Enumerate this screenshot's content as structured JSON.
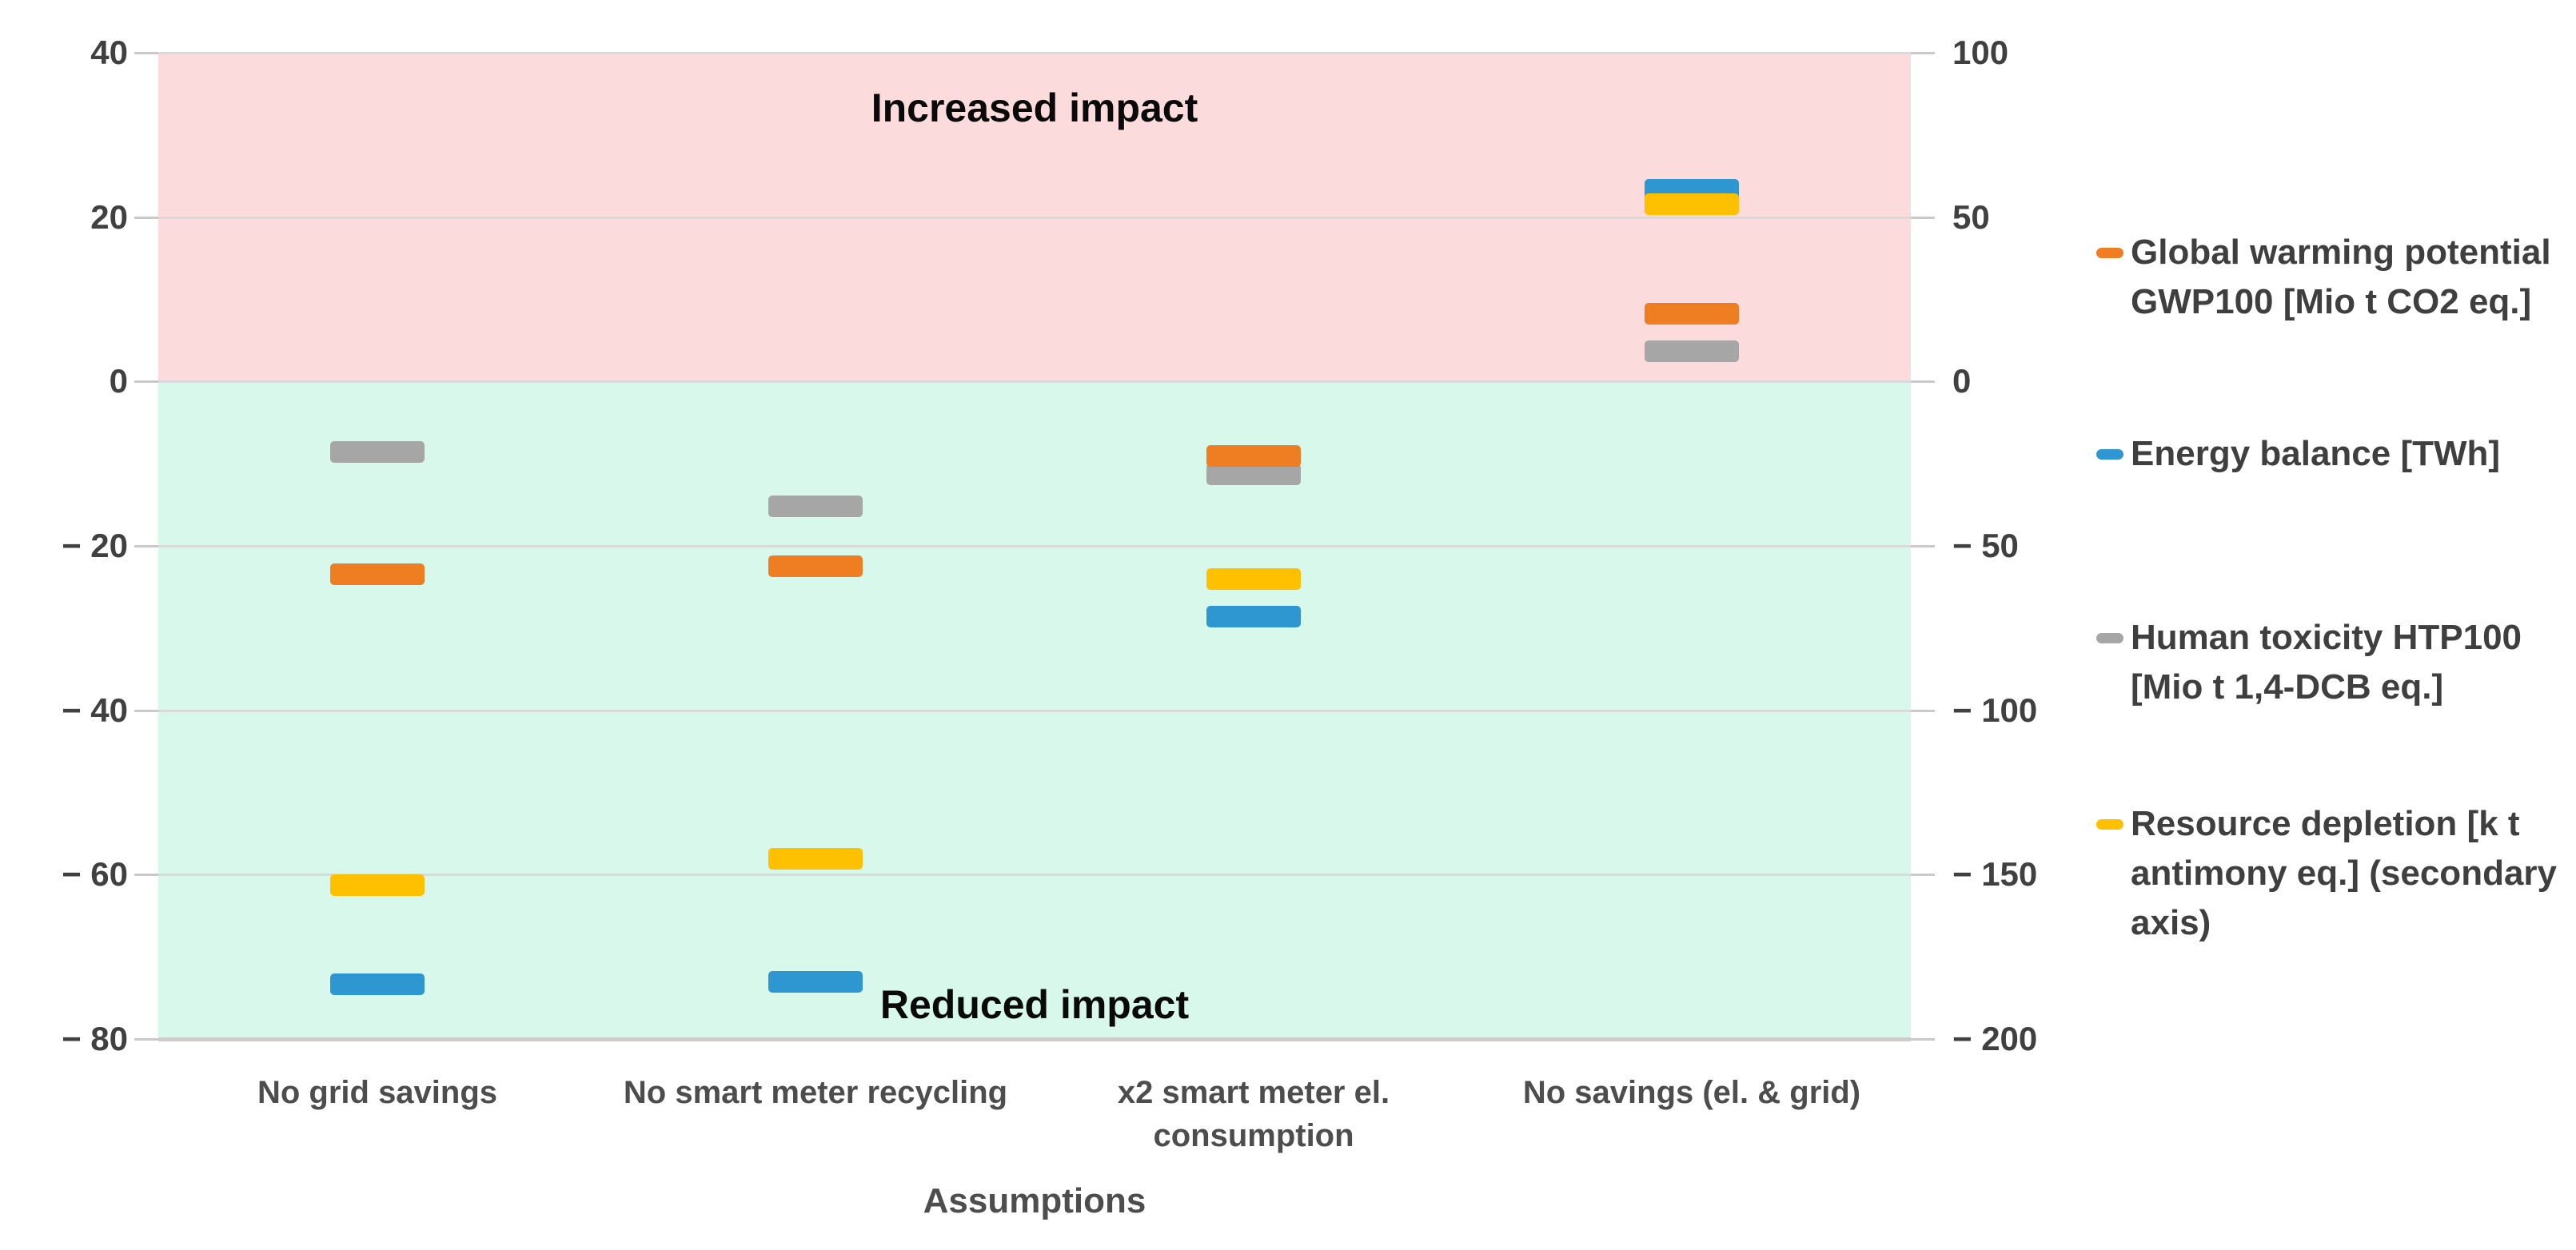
{
  "chart_data": {
    "type": "scatter",
    "title": "",
    "xlabel": "Assumptions",
    "annotations": {
      "increased": "Increased impact",
      "reduced": "Reduced impact"
    },
    "categories": [
      "No grid savings",
      "No smart meter recycling",
      "x2 smart meter el. consumption",
      "No savings (el. & grid)"
    ],
    "left_axis": {
      "range": [
        -80,
        40
      ],
      "values": [
        40,
        20,
        0,
        -20,
        -40,
        -60,
        -80
      ],
      "labels": [
        "40",
        "20",
        "0",
        "− 20",
        "− 40",
        "− 60",
        "− 80"
      ]
    },
    "right_axis": {
      "range": [
        -200,
        100
      ],
      "values": [
        100,
        50,
        0,
        -50,
        -100,
        -150,
        -200
      ],
      "labels": [
        "100",
        "50",
        "0",
        "− 50",
        "− 100",
        "− 150",
        "− 200"
      ]
    },
    "series": [
      {
        "name": "Global warming potential GWP100 [Mio t CO2 eq.]",
        "color": "#EF7D22",
        "axis": "left",
        "z": 3,
        "values": [
          -23.4,
          -22.4,
          -9.0,
          8.3
        ]
      },
      {
        "name": "Energy balance [TWh]",
        "color": "#2E96D1",
        "axis": "left",
        "z": 2,
        "values": [
          -73.3,
          -73.0,
          -28.6,
          23.4
        ]
      },
      {
        "name": "Human toxicity HTP100 [Mio t 1,4-DCB eq.]",
        "color": "#A6A6A6",
        "axis": "left",
        "z": 1,
        "values": [
          -8.5,
          -15.1,
          -11.2,
          3.7
        ]
      },
      {
        "name": "Resource depletion [k t antimony eq.] (secondary axis)",
        "color": "#FFC000",
        "axis": "right",
        "z": 4,
        "values": [
          -153,
          -145,
          -60,
          54
        ]
      }
    ],
    "legend": {
      "position": "right",
      "entries": [
        {
          "color": "#EF7D22",
          "lines": [
            "Global warming potential",
            "GWP100 [Mio t CO2 eq.]"
          ]
        },
        {
          "color": "#2E96D1",
          "lines": [
            "Energy balance [TWh]"
          ]
        },
        {
          "color": "#A6A6A6",
          "lines": [
            "Human toxicity HTP100",
            "[Mio t 1,4-DCB eq.]"
          ]
        },
        {
          "color": "#FFC000",
          "lines": [
            "Resource depletion [k t",
            "antimony eq.] (secondary",
            "axis)"
          ]
        }
      ]
    },
    "regions": {
      "increased_bg": "#FBDBDB",
      "reduced_bg": "#D8F8EB"
    },
    "grid": true
  }
}
